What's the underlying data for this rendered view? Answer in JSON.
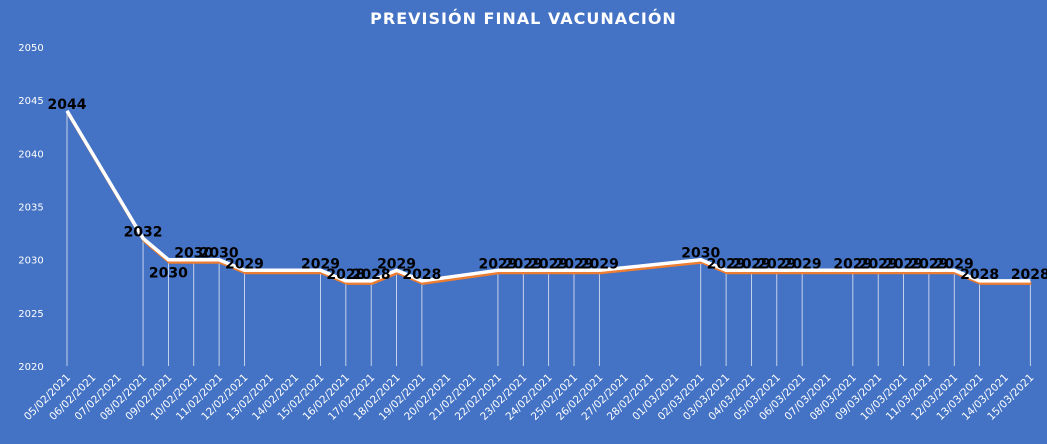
{
  "chart_data": {
    "type": "line",
    "title": "PREVISIÓN FINAL VACUNACIÓN",
    "xlabel": "",
    "ylabel": "",
    "ylim": [
      2020,
      2050
    ],
    "yticks": [
      2020,
      2025,
      2030,
      2035,
      2040,
      2045,
      2050
    ],
    "grid": false,
    "colors": {
      "background": "#4472c4",
      "line": "#ffffff",
      "shadow": "#ed7d31",
      "drop_lines": "#ffffff",
      "text": "#ffffff",
      "data_labels": "#000000"
    },
    "categories": [
      "05/02/2021",
      "06/02/2021",
      "07/02/2021",
      "08/02/2021",
      "09/02/2021",
      "10/02/2021",
      "11/02/2021",
      "12/02/2021",
      "13/02/2021",
      "14/02/2021",
      "15/02/2021",
      "16/02/2021",
      "17/02/2021",
      "18/02/2021",
      "19/02/2021",
      "20/02/2021",
      "21/02/2021",
      "22/02/2021",
      "23/02/2021",
      "24/02/2021",
      "25/02/2021",
      "26/02/2021",
      "27/02/2021",
      "28/02/2021",
      "01/03/2021",
      "02/03/2021",
      "03/03/2021",
      "04/03/2021",
      "05/03/2021",
      "06/03/2021",
      "07/03/2021",
      "08/03/2021",
      "09/03/2021",
      "10/03/2021",
      "11/03/2021",
      "12/03/2021",
      "13/03/2021",
      "14/03/2021",
      "15/03/2021"
    ],
    "points": [
      {
        "category": "05/02/2021",
        "value": 2044,
        "label": "2044",
        "label_pos": "above"
      },
      {
        "category": "08/02/2021",
        "value": 2032,
        "label": "2032",
        "label_pos": "above"
      },
      {
        "category": "09/02/2021",
        "value": 2030,
        "label": "2030",
        "label_pos": "below"
      },
      {
        "category": "10/02/2021",
        "value": 2030,
        "label": "2030",
        "label_pos": "above"
      },
      {
        "category": "11/02/2021",
        "value": 2030,
        "label": "2030",
        "label_pos": "above"
      },
      {
        "category": "12/02/2021",
        "value": 2029,
        "label": "2029",
        "label_pos": "above"
      },
      {
        "category": "15/02/2021",
        "value": 2029,
        "label": "2029",
        "label_pos": "above"
      },
      {
        "category": "16/02/2021",
        "value": 2028,
        "label": "2028",
        "label_pos": "above"
      },
      {
        "category": "17/02/2021",
        "value": 2028,
        "label": "2028",
        "label_pos": "above"
      },
      {
        "category": "18/02/2021",
        "value": 2029,
        "label": "2029",
        "label_pos": "above"
      },
      {
        "category": "19/02/2021",
        "value": 2028,
        "label": "2028",
        "label_pos": "above"
      },
      {
        "category": "22/02/2021",
        "value": 2029,
        "label": "2029",
        "label_pos": "above"
      },
      {
        "category": "23/02/2021",
        "value": 2029,
        "label": "2029",
        "label_pos": "above"
      },
      {
        "category": "24/02/2021",
        "value": 2029,
        "label": "2029",
        "label_pos": "above"
      },
      {
        "category": "25/02/2021",
        "value": 2029,
        "label": "2029",
        "label_pos": "above"
      },
      {
        "category": "26/02/2021",
        "value": 2029,
        "label": "2029",
        "label_pos": "above"
      },
      {
        "category": "02/03/2021",
        "value": 2030,
        "label": "2030",
        "label_pos": "above"
      },
      {
        "category": "03/03/2021",
        "value": 2029,
        "label": "2029",
        "label_pos": "above"
      },
      {
        "category": "04/03/2021",
        "value": 2029,
        "label": "2029",
        "label_pos": "above"
      },
      {
        "category": "05/03/2021",
        "value": 2029,
        "label": "2029",
        "label_pos": "above"
      },
      {
        "category": "06/03/2021",
        "value": 2029,
        "label": "2029",
        "label_pos": "above"
      },
      {
        "category": "08/03/2021",
        "value": 2029,
        "label": "2029",
        "label_pos": "above"
      },
      {
        "category": "09/03/2021",
        "value": 2029,
        "label": "2029",
        "label_pos": "above"
      },
      {
        "category": "10/03/2021",
        "value": 2029,
        "label": "2029",
        "label_pos": "above"
      },
      {
        "category": "11/03/2021",
        "value": 2029,
        "label": "2029",
        "label_pos": "above"
      },
      {
        "category": "12/03/2021",
        "value": 2029,
        "label": "2029",
        "label_pos": "above"
      },
      {
        "category": "13/03/2021",
        "value": 2028,
        "label": "2028",
        "label_pos": "above"
      },
      {
        "category": "15/03/2021",
        "value": 2028,
        "label": "2028",
        "label_pos": "above"
      }
    ]
  }
}
